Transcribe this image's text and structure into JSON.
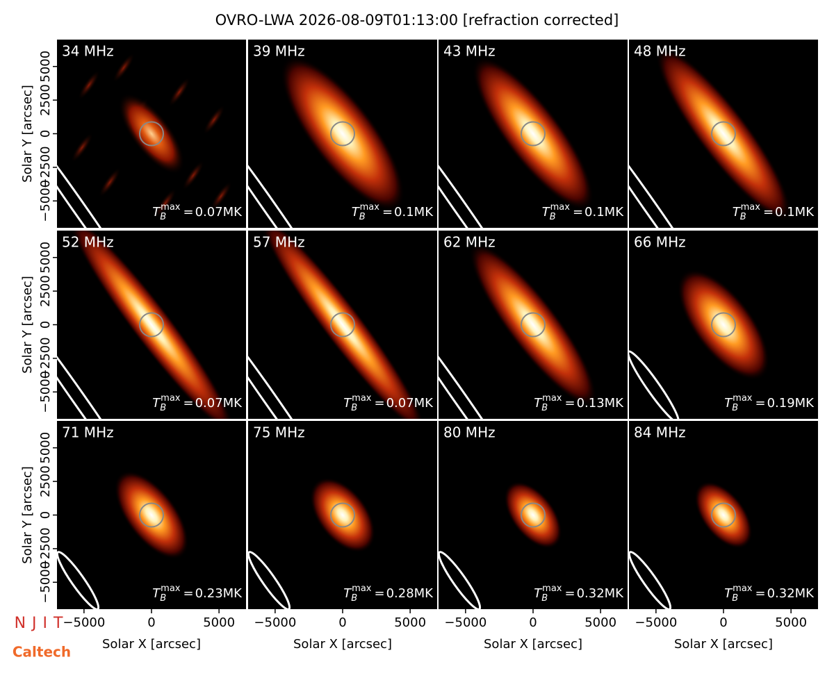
{
  "chart_data": {
    "type": "image-grid",
    "title": "OVRO-LWA 2026-08-09T01:13:00 [refraction corrected]",
    "xlabel": "Solar X [arcsec]",
    "ylabel": "Solar Y [arcsec]",
    "xlim": [
      -7000,
      7000
    ],
    "ylim": [
      -7000,
      7000
    ],
    "xticks": [
      {
        "value": -5000,
        "label": "−5000"
      },
      0,
      5000
    ],
    "yticks": [
      {
        "value": -5000,
        "label": "−5000"
      },
      {
        "value": -2500,
        "label": "−2500"
      },
      0,
      2500,
      5000
    ],
    "tb_label": {
      "base": "T",
      "sub": "B",
      "sup": "max",
      "eq": "="
    },
    "panels": [
      {
        "label": "34 MHz",
        "tb_max": "0.07MK"
      },
      {
        "label": "39 MHz",
        "tb_max": "0.1MK"
      },
      {
        "label": "43 MHz",
        "tb_max": "0.1MK"
      },
      {
        "label": "48 MHz",
        "tb_max": "0.1MK"
      },
      {
        "label": "52 MHz",
        "tb_max": "0.07MK"
      },
      {
        "label": "57 MHz",
        "tb_max": "0.07MK"
      },
      {
        "label": "62 MHz",
        "tb_max": "0.13MK"
      },
      {
        "label": "66 MHz",
        "tb_max": "0.19MK"
      },
      {
        "label": "71 MHz",
        "tb_max": "0.23MK"
      },
      {
        "label": "75 MHz",
        "tb_max": "0.28MK"
      },
      {
        "label": "80 MHz",
        "tb_max": "0.32MK"
      },
      {
        "label": "84 MHz",
        "tb_max": "0.32MK"
      }
    ]
  },
  "logos": {
    "njit": "NJIT",
    "caltech": "Caltech"
  }
}
